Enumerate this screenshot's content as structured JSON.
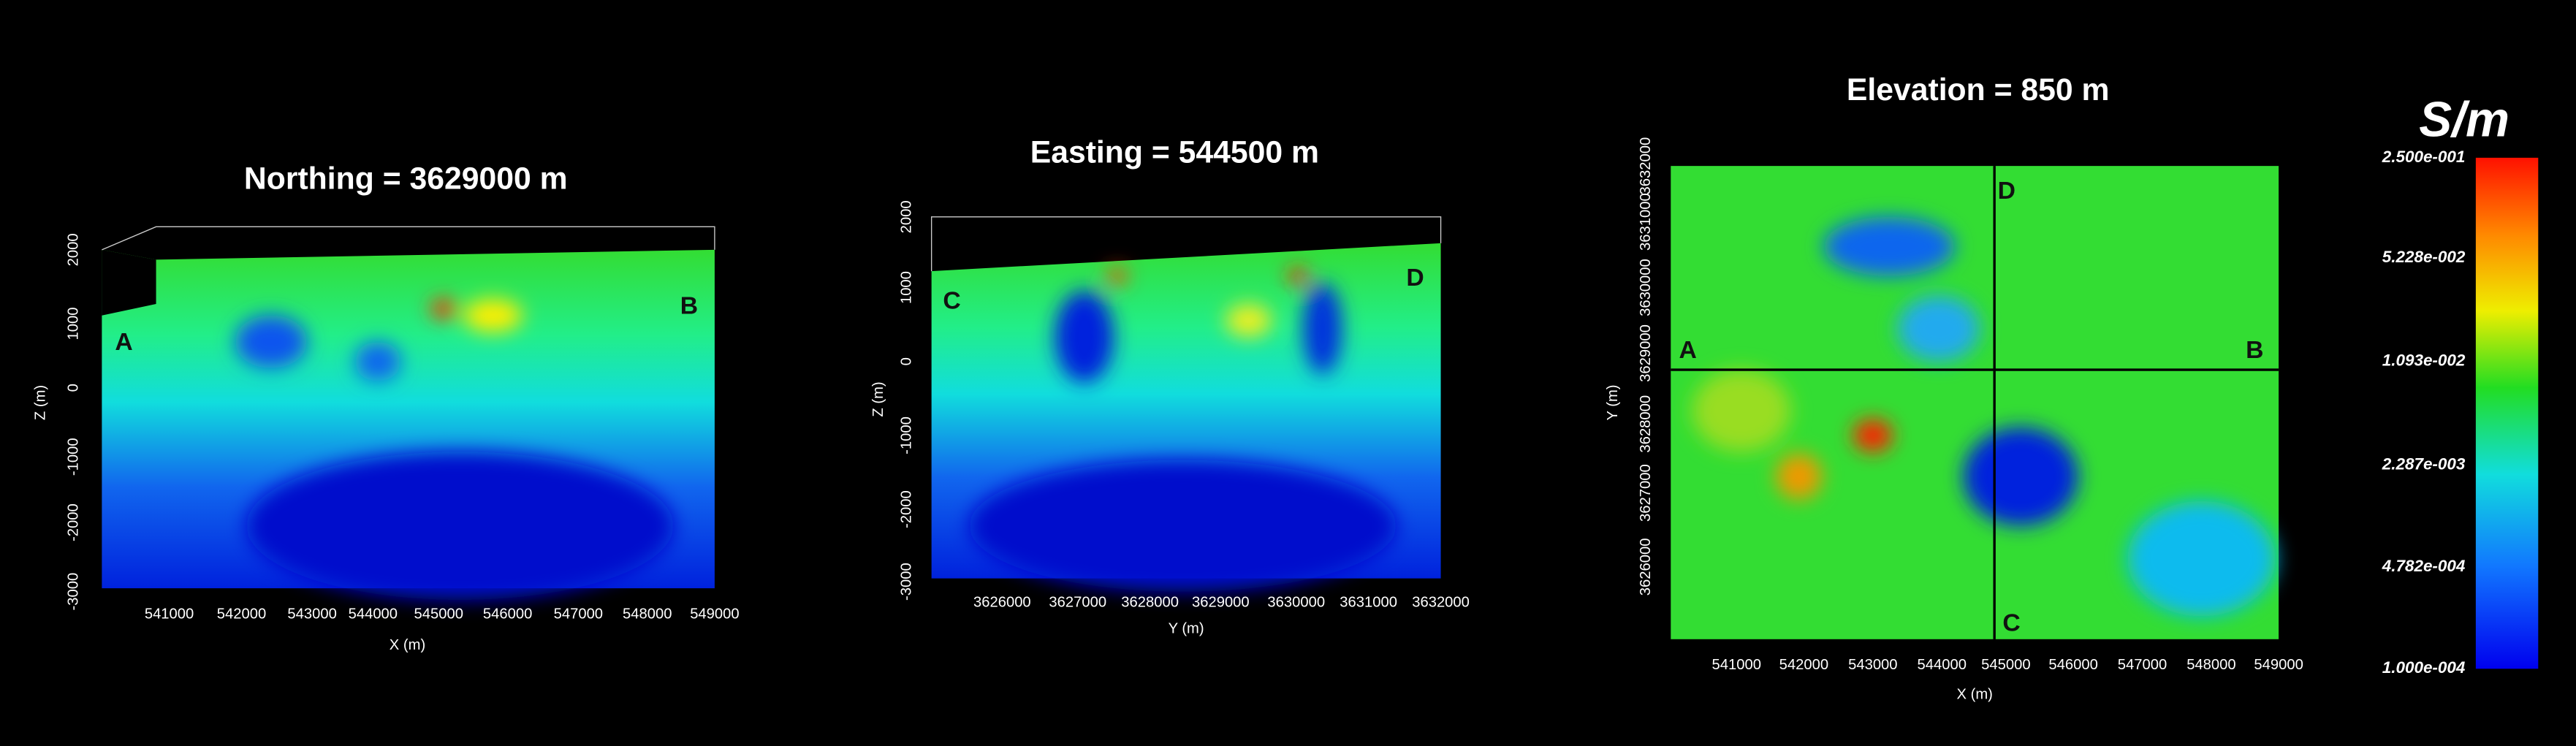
{
  "panels": [
    {
      "title": "Northing = 3629000 m",
      "x_label": "X (m)",
      "y_label": "Z (m)",
      "x_ticks": [
        "541000",
        "542000",
        "543000",
        "544000",
        "545000",
        "546000",
        "547000",
        "548000",
        "549000"
      ],
      "y_ticks": [
        "2000",
        "1000",
        "0",
        "-1000",
        "-2000",
        "-3000"
      ],
      "markers": [
        "A",
        "B"
      ]
    },
    {
      "title": "Easting = 544500 m",
      "x_label": "Y (m)",
      "y_label": "Z (m)",
      "x_ticks": [
        "3626000",
        "3627000",
        "3628000",
        "3629000",
        "3630000",
        "3631000",
        "3632000"
      ],
      "y_ticks": [
        "2000",
        "1000",
        "0",
        "-1000",
        "-2000",
        "-3000"
      ],
      "markers": [
        "C",
        "D"
      ]
    },
    {
      "title": "Elevation = 850 m",
      "x_label": "X (m)",
      "y_label": "Y (m)",
      "x_ticks": [
        "541000",
        "542000",
        "543000",
        "544000",
        "545000",
        "546000",
        "547000",
        "548000",
        "549000"
      ],
      "y_ticks": [
        "3632000",
        "3631000",
        "3630000",
        "3629000",
        "3628000",
        "3627000",
        "3626000"
      ],
      "markers": [
        "A",
        "B",
        "D",
        "C"
      ]
    }
  ],
  "colorbar": {
    "unit": "S/m",
    "labels": [
      "2.500e-001",
      "5.228e-002",
      "1.093e-002",
      "2.287e-003",
      "4.782e-004",
      "1.000e-004"
    ]
  }
}
